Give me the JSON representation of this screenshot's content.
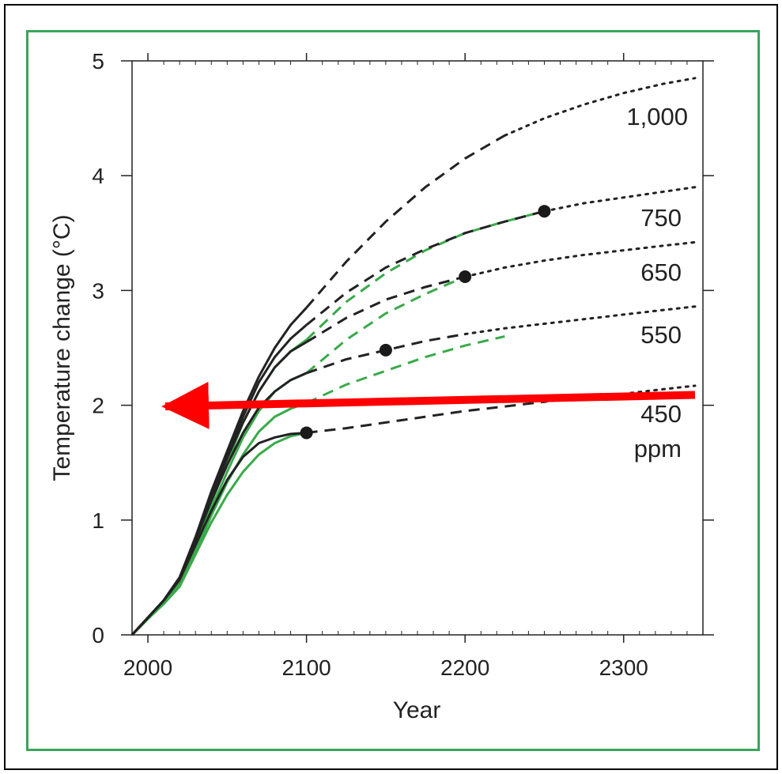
{
  "chart_data": {
    "type": "line",
    "title": "",
    "xlabel": "Year",
    "ylabel": "Temperature change (°C)",
    "xlim": [
      1990,
      2350
    ],
    "ylim": [
      0,
      5
    ],
    "x_ticks": [
      2000,
      2100,
      2200,
      2300
    ],
    "y_ticks": [
      0,
      1,
      2,
      3,
      4,
      5
    ],
    "grid": false,
    "legend": "curve labels at right edge",
    "colors": {
      "black": "#222222",
      "green": "#3aaa4a",
      "annotation": "#ff0000",
      "frame": "#3aa55a"
    },
    "curve_labels": [
      "1,000",
      "750",
      "650",
      "550",
      "450",
      "ppm"
    ],
    "series": [
      {
        "name": "1,000",
        "color": "black",
        "solid": [
          [
            1990,
            0
          ],
          [
            2000,
            0.15
          ],
          [
            2010,
            0.3
          ],
          [
            2020,
            0.5
          ],
          [
            2030,
            0.85
          ],
          [
            2040,
            1.25
          ],
          [
            2050,
            1.6
          ],
          [
            2060,
            1.95
          ],
          [
            2070,
            2.25
          ],
          [
            2080,
            2.5
          ],
          [
            2090,
            2.7
          ],
          [
            2100,
            2.85
          ]
        ],
        "dashed": [
          [
            2100,
            2.85
          ],
          [
            2125,
            3.25
          ],
          [
            2150,
            3.6
          ],
          [
            2175,
            3.9
          ],
          [
            2200,
            4.15
          ],
          [
            2225,
            4.35
          ]
        ],
        "dotted": [
          [
            2225,
            4.35
          ],
          [
            2250,
            4.5
          ],
          [
            2275,
            4.62
          ],
          [
            2300,
            4.72
          ],
          [
            2325,
            4.8
          ],
          [
            2345,
            4.85
          ]
        ]
      },
      {
        "name": "750",
        "color": "black",
        "solid": [
          [
            1990,
            0
          ],
          [
            2000,
            0.15
          ],
          [
            2010,
            0.3
          ],
          [
            2020,
            0.5
          ],
          [
            2030,
            0.85
          ],
          [
            2040,
            1.23
          ],
          [
            2050,
            1.57
          ],
          [
            2060,
            1.9
          ],
          [
            2070,
            2.2
          ],
          [
            2080,
            2.42
          ],
          [
            2090,
            2.58
          ],
          [
            2100,
            2.7
          ]
        ],
        "dashed": [
          [
            2100,
            2.7
          ],
          [
            2125,
            2.98
          ],
          [
            2150,
            3.2
          ],
          [
            2175,
            3.36
          ],
          [
            2200,
            3.5
          ],
          [
            2225,
            3.6
          ],
          [
            2250,
            3.69
          ]
        ],
        "dotted": [
          [
            2250,
            3.69
          ],
          [
            2275,
            3.76
          ],
          [
            2300,
            3.81
          ],
          [
            2325,
            3.86
          ],
          [
            2345,
            3.9
          ]
        ]
      },
      {
        "name": "650",
        "color": "black",
        "solid": [
          [
            1990,
            0
          ],
          [
            2000,
            0.15
          ],
          [
            2010,
            0.3
          ],
          [
            2020,
            0.5
          ],
          [
            2030,
            0.84
          ],
          [
            2040,
            1.2
          ],
          [
            2050,
            1.54
          ],
          [
            2060,
            1.85
          ],
          [
            2070,
            2.12
          ],
          [
            2080,
            2.33
          ],
          [
            2090,
            2.47
          ],
          [
            2100,
            2.55
          ]
        ],
        "dashed": [
          [
            2100,
            2.55
          ],
          [
            2125,
            2.76
          ],
          [
            2150,
            2.92
          ],
          [
            2175,
            3.03
          ],
          [
            2200,
            3.12
          ]
        ],
        "dotted": [
          [
            2200,
            3.12
          ],
          [
            2225,
            3.2
          ],
          [
            2250,
            3.26
          ],
          [
            2275,
            3.31
          ],
          [
            2300,
            3.35
          ],
          [
            2325,
            3.39
          ],
          [
            2345,
            3.42
          ]
        ]
      },
      {
        "name": "550",
        "color": "black",
        "solid": [
          [
            1990,
            0
          ],
          [
            2000,
            0.15
          ],
          [
            2010,
            0.3
          ],
          [
            2020,
            0.5
          ],
          [
            2030,
            0.82
          ],
          [
            2040,
            1.17
          ],
          [
            2050,
            1.48
          ],
          [
            2060,
            1.76
          ],
          [
            2070,
            1.98
          ],
          [
            2080,
            2.12
          ],
          [
            2090,
            2.22
          ],
          [
            2100,
            2.28
          ]
        ],
        "dashed": [
          [
            2100,
            2.28
          ],
          [
            2125,
            2.4
          ],
          [
            2150,
            2.48
          ],
          [
            2175,
            2.56
          ],
          [
            2200,
            2.62
          ]
        ],
        "dotted": [
          [
            2200,
            2.62
          ],
          [
            2225,
            2.67
          ],
          [
            2250,
            2.71
          ],
          [
            2275,
            2.75
          ],
          [
            2300,
            2.79
          ],
          [
            2325,
            2.83
          ],
          [
            2345,
            2.86
          ]
        ]
      },
      {
        "name": "450",
        "color": "black",
        "solid": [
          [
            1990,
            0
          ],
          [
            2000,
            0.15
          ],
          [
            2010,
            0.3
          ],
          [
            2020,
            0.48
          ],
          [
            2030,
            0.78
          ],
          [
            2040,
            1.08
          ],
          [
            2050,
            1.35
          ],
          [
            2060,
            1.55
          ],
          [
            2070,
            1.67
          ],
          [
            2080,
            1.72
          ],
          [
            2090,
            1.75
          ],
          [
            2100,
            1.76
          ]
        ],
        "dashed": [
          [
            2100,
            1.76
          ],
          [
            2125,
            1.8
          ],
          [
            2150,
            1.85
          ],
          [
            2175,
            1.9
          ],
          [
            2200,
            1.95
          ],
          [
            2225,
            1.99
          ],
          [
            2250,
            2.03
          ]
        ],
        "dotted": [
          [
            2250,
            2.03
          ],
          [
            2275,
            2.07
          ],
          [
            2300,
            2.1
          ],
          [
            2325,
            2.14
          ],
          [
            2345,
            2.17
          ]
        ]
      },
      {
        "name": "",
        "color": "green",
        "solid": [
          [
            1990,
            0
          ],
          [
            2000,
            0.14
          ],
          [
            2010,
            0.28
          ],
          [
            2020,
            0.45
          ],
          [
            2030,
            0.78
          ],
          [
            2040,
            1.15
          ],
          [
            2050,
            1.5
          ],
          [
            2060,
            1.85
          ],
          [
            2070,
            2.12
          ],
          [
            2080,
            2.33
          ],
          [
            2090,
            2.47
          ],
          [
            2100,
            2.57
          ]
        ],
        "dashed": [
          [
            2100,
            2.57
          ],
          [
            2125,
            2.9
          ],
          [
            2150,
            3.15
          ],
          [
            2175,
            3.35
          ],
          [
            2200,
            3.5
          ],
          [
            2225,
            3.6
          ],
          [
            2250,
            3.69
          ]
        ]
      },
      {
        "name": "",
        "color": "green",
        "solid": [
          [
            1990,
            0
          ],
          [
            2000,
            0.14
          ],
          [
            2010,
            0.28
          ],
          [
            2020,
            0.45
          ],
          [
            2030,
            0.76
          ],
          [
            2040,
            1.1
          ],
          [
            2050,
            1.42
          ],
          [
            2060,
            1.72
          ],
          [
            2070,
            1.95
          ],
          [
            2080,
            2.12
          ],
          [
            2090,
            2.22
          ],
          [
            2100,
            2.28
          ]
        ],
        "dashed": [
          [
            2100,
            2.28
          ],
          [
            2125,
            2.57
          ],
          [
            2150,
            2.8
          ],
          [
            2175,
            2.97
          ],
          [
            2200,
            3.12
          ]
        ]
      },
      {
        "name": "",
        "color": "green",
        "solid": [
          [
            1990,
            0
          ],
          [
            2000,
            0.14
          ],
          [
            2010,
            0.27
          ],
          [
            2020,
            0.43
          ],
          [
            2030,
            0.72
          ],
          [
            2040,
            1.04
          ],
          [
            2050,
            1.33
          ],
          [
            2060,
            1.57
          ],
          [
            2070,
            1.77
          ],
          [
            2080,
            1.9
          ],
          [
            2090,
            1.97
          ],
          [
            2100,
            2.02
          ]
        ],
        "dashed": [
          [
            2100,
            2.02
          ],
          [
            2125,
            2.18
          ],
          [
            2150,
            2.3
          ],
          [
            2175,
            2.42
          ],
          [
            2200,
            2.52
          ],
          [
            2225,
            2.6
          ]
        ]
      },
      {
        "name": "",
        "color": "green",
        "solid": [
          [
            1990,
            0
          ],
          [
            2000,
            0.14
          ],
          [
            2010,
            0.27
          ],
          [
            2020,
            0.42
          ],
          [
            2030,
            0.7
          ],
          [
            2040,
            0.98
          ],
          [
            2050,
            1.22
          ],
          [
            2060,
            1.42
          ],
          [
            2070,
            1.57
          ],
          [
            2080,
            1.67
          ],
          [
            2090,
            1.73
          ],
          [
            2100,
            1.76
          ]
        ]
      }
    ],
    "markers": [
      {
        "x": 2100,
        "y": 1.76
      },
      {
        "x": 2150,
        "y": 2.48
      },
      {
        "x": 2200,
        "y": 3.12
      },
      {
        "x": 2250,
        "y": 3.69
      }
    ],
    "annotation_arrow": {
      "from": [
        2345,
        2.09
      ],
      "to": [
        2002,
        1.99
      ],
      "color": "#ff0000"
    }
  }
}
